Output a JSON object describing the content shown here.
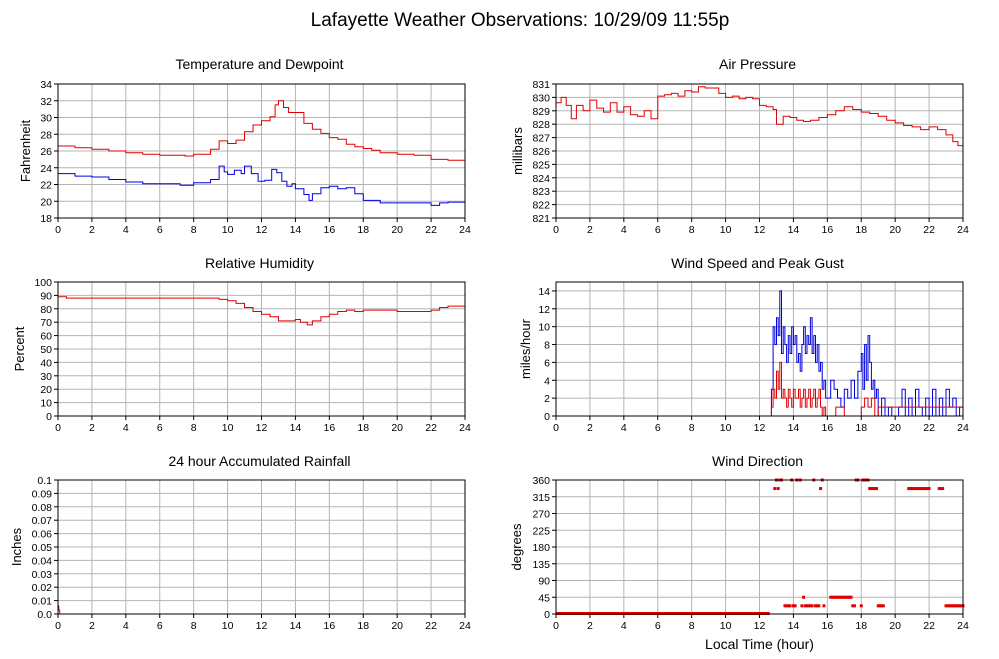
{
  "page": {
    "title": "Lafayette Weather Observations: 10/29/09 11:55p"
  },
  "colors": {
    "red": "#e00000",
    "blue": "#0000e0",
    "grid": "#b4b4b4"
  },
  "chart_data": [
    {
      "id": "temp",
      "type": "line",
      "title": "Temperature and Dewpoint",
      "ylabel": "Fahrenheit",
      "xlabel": "",
      "xlim": [
        0,
        24
      ],
      "ylim": [
        18,
        34
      ],
      "xticks": [
        0,
        2,
        4,
        6,
        8,
        10,
        12,
        14,
        16,
        18,
        20,
        22,
        24
      ],
      "yticks": [
        18,
        20,
        22,
        24,
        26,
        28,
        30,
        32,
        34
      ],
      "grid": true,
      "series": [
        {
          "color": "red",
          "x": [
            0,
            1,
            2,
            3,
            4,
            5,
            6,
            7,
            7.5,
            8,
            9,
            9.5,
            10,
            10.5,
            11,
            11.5,
            12,
            12.5,
            12.8,
            13,
            13.3,
            13.6,
            14,
            14.5,
            15,
            15.5,
            16,
            16.5,
            17,
            17.5,
            18,
            18.5,
            19,
            20,
            21,
            22,
            23,
            23.7,
            24
          ],
          "y": [
            26.6,
            26.4,
            26.2,
            26,
            25.8,
            25.6,
            25.5,
            25.5,
            25.4,
            25.6,
            26.2,
            27.2,
            26.9,
            27.3,
            28.3,
            29.1,
            29.6,
            30.1,
            31.5,
            32,
            31.2,
            30.6,
            30.6,
            29.3,
            28.6,
            28.1,
            27.6,
            27.4,
            26.8,
            26.5,
            26.3,
            26.1,
            25.8,
            25.6,
            25.5,
            25,
            24.9,
            24.9,
            24.5
          ]
        },
        {
          "color": "blue",
          "x": [
            0,
            0.5,
            1,
            2,
            3,
            4,
            5,
            6,
            7,
            7.2,
            8,
            9,
            9.5,
            9.8,
            10,
            10.4,
            10.8,
            11,
            11.4,
            11.8,
            12.2,
            12.6,
            12.9,
            13.2,
            13.5,
            13.8,
            14,
            14.5,
            14.8,
            15,
            15.5,
            16,
            16.5,
            17,
            17.5,
            18,
            18.5,
            19,
            20,
            21,
            22,
            22.5,
            23,
            23.5,
            24
          ],
          "y": [
            23.3,
            23.3,
            23,
            22.9,
            22.6,
            22.3,
            22.1,
            22.1,
            22.1,
            21.9,
            22.2,
            22.6,
            24.2,
            23.5,
            23.2,
            23.7,
            23.3,
            24.2,
            23.3,
            22.4,
            22.5,
            23.8,
            23.4,
            22.4,
            21.8,
            22.1,
            21.5,
            20.8,
            20.1,
            20.9,
            21.6,
            21.8,
            21.5,
            21.6,
            20.9,
            20.1,
            20.1,
            19.8,
            19.8,
            19.8,
            19.5,
            19.8,
            19.9,
            19.9,
            19.7
          ]
        }
      ]
    },
    {
      "id": "pressure",
      "type": "line",
      "title": "Air Pressure",
      "ylabel": "millibars",
      "xlabel": "",
      "xlim": [
        0,
        24
      ],
      "ylim": [
        821,
        831
      ],
      "xticks": [
        0,
        2,
        4,
        6,
        8,
        10,
        12,
        14,
        16,
        18,
        20,
        22,
        24
      ],
      "yticks": [
        821,
        822,
        823,
        824,
        825,
        826,
        827,
        828,
        829,
        830,
        831
      ],
      "grid": true,
      "series": [
        {
          "color": "red",
          "x": [
            0,
            0.3,
            0.6,
            0.9,
            1.2,
            1.6,
            2,
            2.4,
            2.8,
            3.2,
            3.6,
            4,
            4.4,
            4.8,
            5.2,
            5.6,
            6,
            6.4,
            6.8,
            7.2,
            7.6,
            8,
            8.4,
            8.8,
            9.2,
            9.6,
            10,
            10.4,
            10.8,
            11.2,
            11.6,
            12,
            12.4,
            12.8,
            13,
            13.4,
            13.8,
            14.2,
            14.6,
            15,
            15.5,
            16,
            16.5,
            17,
            17.5,
            18,
            18.5,
            19,
            19.5,
            20,
            20.5,
            21,
            21.5,
            22,
            22.5,
            23,
            23.4,
            23.7,
            24
          ],
          "y": [
            829.6,
            830,
            829.4,
            828.4,
            829.4,
            829,
            829.8,
            829.2,
            828.9,
            829.6,
            828.9,
            829.3,
            828.7,
            828.6,
            829,
            828.4,
            830.1,
            830.2,
            830.3,
            830.1,
            830.5,
            830.4,
            830.8,
            830.7,
            830.7,
            830.3,
            830,
            830.1,
            829.9,
            830,
            829.9,
            829.4,
            829.3,
            829.1,
            828,
            828.6,
            828.5,
            828.3,
            828.2,
            828.3,
            828.5,
            828.7,
            829,
            829.3,
            829.1,
            828.9,
            828.8,
            828.6,
            828.3,
            828.1,
            827.9,
            827.8,
            827.6,
            827.8,
            827.6,
            827.2,
            826.7,
            826.4,
            826.3
          ]
        }
      ]
    },
    {
      "id": "humidity",
      "type": "line",
      "title": "Relative Humidity",
      "ylabel": "Percent",
      "xlabel": "",
      "xlim": [
        0,
        24
      ],
      "ylim": [
        0,
        100
      ],
      "xticks": [
        0,
        2,
        4,
        6,
        8,
        10,
        12,
        14,
        16,
        18,
        20,
        22,
        24
      ],
      "yticks": [
        0,
        10,
        20,
        30,
        40,
        50,
        60,
        70,
        80,
        90,
        100
      ],
      "grid": true,
      "series": [
        {
          "color": "red",
          "x": [
            0,
            0.5,
            1,
            2,
            3,
            4,
            5,
            6,
            7,
            8,
            9,
            9.5,
            10,
            10.5,
            11,
            11.5,
            12,
            12.5,
            13,
            13.5,
            14,
            14.3,
            14.7,
            15,
            15.5,
            16,
            16.5,
            17,
            17.5,
            18,
            18.5,
            19,
            20,
            21,
            22,
            22.5,
            23,
            24
          ],
          "y": [
            89,
            88,
            88,
            88,
            88,
            88,
            88,
            88,
            88,
            88,
            88,
            87,
            86,
            84,
            81,
            78,
            76,
            74,
            71,
            71,
            72,
            70,
            68,
            71,
            74,
            76,
            78,
            79,
            78,
            79,
            79,
            79,
            78,
            78,
            79,
            81,
            82,
            82
          ]
        }
      ]
    },
    {
      "id": "wind",
      "type": "line",
      "title": "Wind Speed and Peak Gust",
      "ylabel": "miles/hour",
      "xlabel": "",
      "xlim": [
        0,
        24
      ],
      "ylim": [
        0,
        15
      ],
      "xticks": [
        0,
        2,
        4,
        6,
        8,
        10,
        12,
        14,
        16,
        18,
        20,
        22,
        24
      ],
      "yticks": [
        0,
        2,
        4,
        6,
        8,
        10,
        12,
        14
      ],
      "grid": true,
      "series": [
        {
          "color": "blue",
          "x": [
            0,
            12.6,
            12.7,
            12.8,
            12.9,
            13,
            13.1,
            13.2,
            13.3,
            13.4,
            13.5,
            13.6,
            13.7,
            13.8,
            13.9,
            14,
            14.1,
            14.2,
            14.3,
            14.4,
            14.5,
            14.6,
            14.7,
            14.8,
            14.9,
            15,
            15.1,
            15.2,
            15.3,
            15.4,
            15.5,
            15.6,
            15.7,
            15.8,
            15.9,
            16,
            16.2,
            16.4,
            16.6,
            16.8,
            17,
            17.2,
            17.4,
            17.6,
            17.8,
            18,
            18.1,
            18.2,
            18.3,
            18.4,
            18.5,
            18.6,
            18.7,
            18.8,
            18.9,
            19,
            19.2,
            19.4,
            19.6,
            19.8,
            20,
            20.2,
            20.4,
            20.6,
            20.8,
            21,
            21.2,
            21.4,
            21.6,
            21.8,
            22,
            22.2,
            22.4,
            22.6,
            22.8,
            23,
            23.2,
            23.4,
            23.6,
            23.8,
            24
          ],
          "y": [
            0,
            0,
            3,
            10,
            8,
            11,
            9,
            14,
            7,
            10,
            8,
            6,
            9,
            7,
            10,
            8,
            9,
            6,
            7,
            5,
            8,
            10,
            7,
            9,
            8,
            11,
            7,
            9,
            6,
            8,
            5,
            6,
            3,
            4,
            2,
            2,
            4,
            3,
            2,
            1,
            3,
            2,
            4,
            2,
            5,
            7,
            3,
            8,
            4,
            9,
            6,
            3,
            4,
            2,
            3,
            0,
            2,
            0,
            1,
            0,
            0,
            1,
            3,
            0,
            2,
            0,
            3,
            1,
            0,
            2,
            0,
            3,
            0,
            2,
            0,
            3,
            1,
            2,
            0,
            1,
            0
          ]
        },
        {
          "color": "red",
          "x": [
            0,
            12.6,
            12.7,
            12.8,
            12.9,
            13,
            13.1,
            13.2,
            13.3,
            13.4,
            13.5,
            13.6,
            13.7,
            13.8,
            13.9,
            14,
            14.1,
            14.2,
            14.3,
            14.4,
            14.5,
            14.6,
            14.7,
            14.8,
            14.9,
            15,
            15.1,
            15.2,
            15.3,
            15.4,
            15.5,
            15.6,
            15.7,
            15.8,
            15.9,
            16,
            16.5,
            17,
            17.5,
            18,
            18.2,
            18.4,
            18.6,
            18.8,
            19,
            24
          ],
          "y": [
            0,
            0,
            1,
            3,
            2,
            5,
            3,
            6,
            2,
            3,
            2,
            1,
            3,
            2,
            1,
            3,
            2,
            2,
            3,
            1,
            2,
            3,
            1,
            2,
            3,
            1,
            2,
            3,
            1,
            2,
            3,
            1,
            0,
            1,
            0,
            0,
            1,
            0,
            0,
            1,
            2,
            1,
            2,
            0,
            1,
            0
          ]
        }
      ]
    },
    {
      "id": "rain",
      "type": "line",
      "title": "24 hour Accumulated Rainfall",
      "ylabel": "Inches",
      "xlabel": "",
      "xlim": [
        0,
        24
      ],
      "ylim": [
        0,
        0.1
      ],
      "xticks": [
        0,
        2,
        4,
        6,
        8,
        10,
        12,
        14,
        16,
        18,
        20,
        22,
        24
      ],
      "yticks": [
        "0.0",
        "0.01",
        "0.02",
        "0.03",
        "0.04",
        "0.05",
        "0.06",
        "0.07",
        "0.08",
        "0.09",
        "0.1"
      ],
      "grid": true,
      "series": [
        {
          "color": "red",
          "x": [
            0,
            0.05,
            0.1,
            24
          ],
          "y": [
            0.006,
            0.003,
            0,
            0
          ]
        }
      ]
    },
    {
      "id": "direction",
      "type": "scatter",
      "title": "Wind Direction",
      "ylabel": "degrees",
      "xlabel": "Local Time (hour)",
      "xlim": [
        0,
        24
      ],
      "ylim": [
        0,
        360
      ],
      "xticks": [
        0,
        2,
        4,
        6,
        8,
        10,
        12,
        14,
        16,
        18,
        20,
        22,
        24
      ],
      "yticks": [
        0,
        45,
        90,
        135,
        180,
        225,
        270,
        315,
        360
      ],
      "grid": true,
      "series": [
        {
          "color": "red",
          "x": [
            12.9,
            13,
            13.1,
            13.2,
            13.3,
            13.5,
            13.6,
            13.7,
            13.8,
            13.9,
            14,
            14.1,
            14.2,
            14.4,
            14.5,
            14.6,
            14.7,
            14.8,
            14.9,
            15,
            15.1,
            15.2,
            15.3,
            15.4,
            15.5,
            15.6,
            15.7,
            15.8,
            16.2,
            16.3,
            16.4,
            16.5,
            16.6,
            16.7,
            16.8,
            16.9,
            17,
            17.1,
            17.2,
            17.3,
            17.4,
            17.5,
            17.6,
            17.7,
            17.8,
            18,
            18.1,
            18.2,
            18.3,
            18.4,
            18.5,
            18.6,
            18.7,
            18.8,
            18.9,
            19,
            19.1,
            19.2,
            19.3,
            20.8,
            20.9,
            21,
            21.1,
            21.2,
            21.3,
            21.4,
            21.5,
            21.6,
            21.7,
            21.8,
            21.9,
            22,
            22.6,
            22.7,
            22.8,
            23,
            23.1,
            23.2,
            23.3,
            23.4,
            23.5,
            23.6,
            23.7,
            23.8,
            23.9,
            24
          ],
          "y": [
            337,
            360,
            337,
            360,
            360,
            22,
            22,
            22,
            22,
            360,
            22,
            22,
            360,
            360,
            22,
            45,
            22,
            22,
            22,
            22,
            22,
            360,
            22,
            22,
            22,
            337,
            360,
            22,
            45,
            45,
            45,
            45,
            45,
            45,
            45,
            45,
            45,
            45,
            45,
            45,
            45,
            22,
            22,
            360,
            360,
            22,
            360,
            360,
            360,
            360,
            337,
            337,
            337,
            337,
            337,
            22,
            22,
            22,
            22,
            337,
            337,
            337,
            337,
            337,
            337,
            337,
            337,
            337,
            337,
            337,
            337,
            337,
            337,
            337,
            337,
            22,
            22,
            22,
            22,
            22,
            22,
            22,
            22,
            22,
            22,
            22
          ]
        },
        {
          "color": "red",
          "line_at_zero": true,
          "x": [
            0,
            12.6
          ],
          "y": [
            0,
            0
          ]
        }
      ]
    }
  ]
}
